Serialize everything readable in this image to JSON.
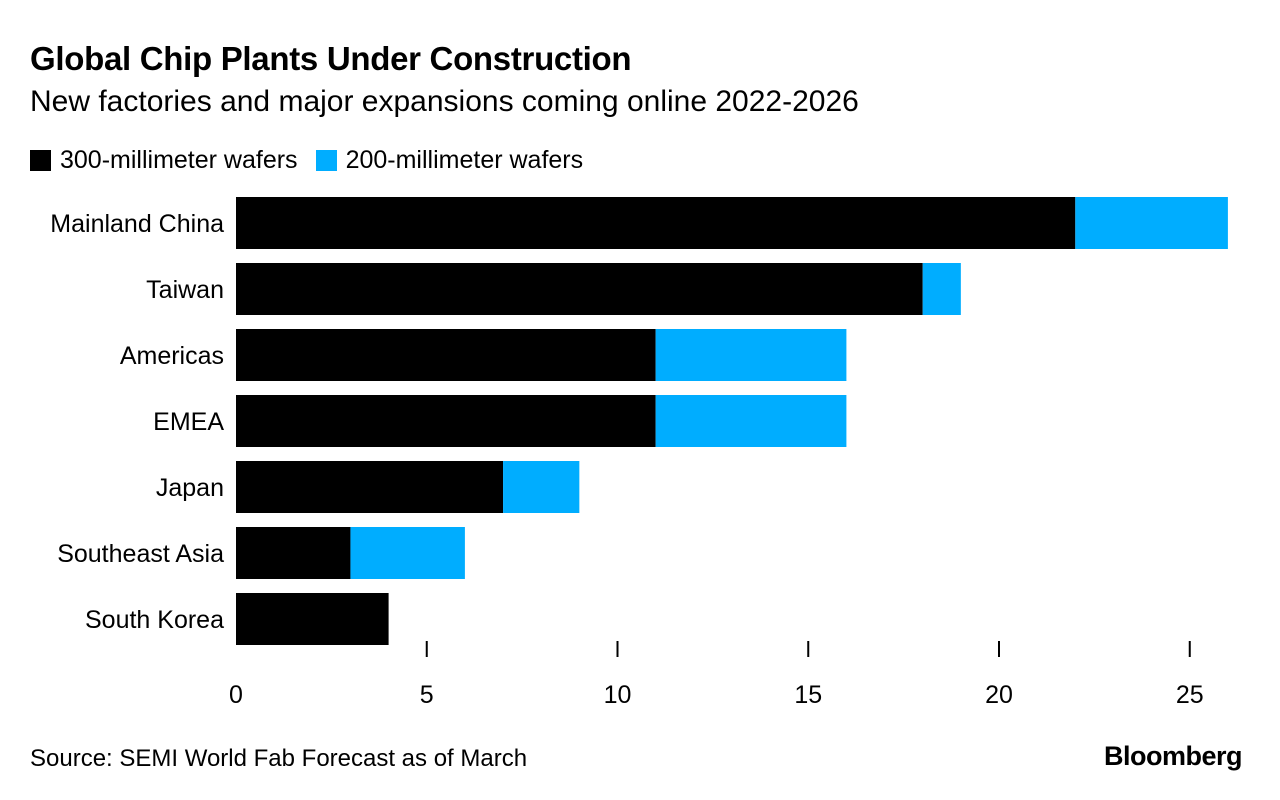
{
  "chart_data": {
    "type": "bar",
    "orientation": "horizontal",
    "stacked": true,
    "title": "Global Chip Plants Under Construction",
    "subtitle": "New factories and major expansions coming online 2022-2026",
    "categories": [
      "Mainland China",
      "Taiwan",
      "Americas",
      "EMEA",
      "Japan",
      "Southeast Asia",
      "South Korea"
    ],
    "series": [
      {
        "name": "300-millimeter wafers",
        "color": "#000000",
        "values": [
          22,
          18,
          11,
          11,
          7,
          3,
          4
        ]
      },
      {
        "name": "200-millimeter wafers",
        "color": "#00adff",
        "values": [
          4,
          1,
          5,
          5,
          2,
          3,
          0
        ]
      }
    ],
    "x_ticks": [
      0,
      5,
      10,
      15,
      20,
      25
    ],
    "xlim": [
      0,
      26
    ],
    "grid": false,
    "legend_position": "top-left",
    "source": "Source: SEMI World Fab Forecast as of March",
    "brand": "Bloomberg"
  }
}
